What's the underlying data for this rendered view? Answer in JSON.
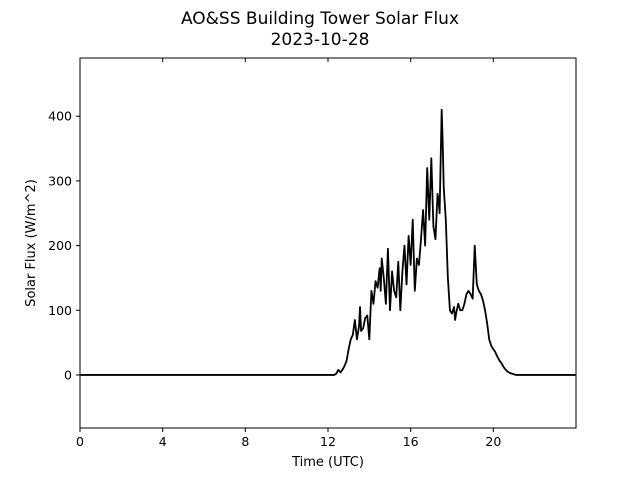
{
  "chart_data": {
    "type": "line",
    "title": "AO&SS Building Tower Solar Flux",
    "subtitle": "2023-10-28",
    "xlabel": "Time (UTC)",
    "ylabel": "Solar Flux (W/m^2)",
    "xlim": [
      0,
      24
    ],
    "ylim": [
      -82,
      490
    ],
    "xticks": [
      0,
      4,
      8,
      12,
      16,
      20
    ],
    "yticks": [
      0,
      100,
      200,
      300,
      400
    ],
    "grid": false,
    "line_color": "#000000",
    "series": [
      {
        "x": [
          0,
          12.3,
          12.4,
          12.5,
          12.6,
          12.7,
          12.8,
          12.9,
          13.0,
          13.1,
          13.2,
          13.3,
          13.4,
          13.5,
          13.55,
          13.6,
          13.7,
          13.8,
          13.9,
          14.0,
          14.1,
          14.2,
          14.3,
          14.4,
          14.5,
          14.55,
          14.6,
          14.7,
          14.8,
          14.9,
          15.0,
          15.1,
          15.2,
          15.3,
          15.4,
          15.5,
          15.6,
          15.7,
          15.8,
          15.9,
          16.0,
          16.1,
          16.2,
          16.3,
          16.4,
          16.5,
          16.6,
          16.7,
          16.8,
          16.9,
          17.0,
          17.1,
          17.2,
          17.3,
          17.35,
          17.4,
          17.5,
          17.55,
          17.6,
          17.7,
          17.8,
          17.9,
          18.0,
          18.1,
          18.15,
          18.2,
          18.3,
          18.4,
          18.5,
          18.6,
          18.7,
          18.8,
          18.9,
          19.0,
          19.1,
          19.2,
          19.3,
          19.4,
          19.5,
          19.6,
          19.7,
          19.8,
          19.9,
          20.0,
          20.1,
          20.2,
          20.3,
          20.4,
          20.5,
          20.6,
          20.7,
          20.8,
          20.9,
          21.0,
          21.1,
          21.2,
          21.3,
          21.4,
          21.5,
          21.6,
          21.7,
          21.8,
          22.0,
          22.2,
          22.4,
          22.6,
          22.8,
          23.0,
          24.0
        ],
        "y": [
          0,
          0,
          2,
          8,
          4,
          8,
          14,
          22,
          40,
          55,
          62,
          85,
          55,
          75,
          105,
          68,
          72,
          88,
          92,
          55,
          130,
          110,
          145,
          135,
          165,
          130,
          180,
          150,
          110,
          195,
          100,
          160,
          130,
          120,
          175,
          100,
          160,
          200,
          140,
          215,
          170,
          240,
          130,
          180,
          170,
          210,
          255,
          200,
          320,
          240,
          335,
          230,
          210,
          280,
          270,
          250,
          410,
          360,
          290,
          240,
          150,
          100,
          95,
          105,
          85,
          95,
          110,
          100,
          100,
          110,
          125,
          130,
          125,
          118,
          200,
          140,
          130,
          125,
          115,
          100,
          80,
          55,
          45,
          40,
          35,
          28,
          22,
          18,
          12,
          8,
          5,
          3,
          2,
          1,
          0,
          0,
          0,
          0,
          0,
          0,
          0,
          0,
          0,
          0,
          0,
          0,
          0,
          0,
          0
        ]
      }
    ]
  }
}
